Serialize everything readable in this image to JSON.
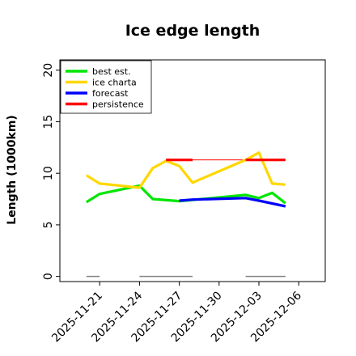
{
  "chart_data": {
    "type": "line",
    "title": "Ice edge length",
    "xlabel": "",
    "ylabel": "Length (1000km)",
    "ylim": [
      -0.5,
      21
    ],
    "yticks": [
      0,
      5,
      10,
      15,
      20
    ],
    "xlim": [
      "2025-11-18",
      "2025-12-08"
    ],
    "xticks": [
      "2025-11-21",
      "2025-11-24",
      "2025-11-27",
      "2025-11-30",
      "2025-12-03",
      "2025-12-06"
    ],
    "highlight_xtick": "2025-11-27",
    "legend_position": "top-left",
    "grid": false,
    "series": [
      {
        "name": "best est.",
        "color": "#00e600",
        "style": "thick",
        "x": [
          "2025-11-20",
          "2025-11-21",
          "2025-11-24",
          "2025-11-25",
          "2025-11-27",
          "2025-12-02",
          "2025-12-03",
          "2025-12-04",
          "2025-12-05"
        ],
        "y": [
          7.2,
          8.0,
          8.8,
          7.5,
          7.3,
          7.9,
          7.6,
          8.1,
          7.1
        ]
      },
      {
        "name": "best est. (connector)",
        "color": "#00e600",
        "style": "thin",
        "x": [
          "2025-11-27",
          "2025-12-02"
        ],
        "y": [
          7.3,
          7.9
        ]
      },
      {
        "name": "ice charta",
        "color": "#ffd700",
        "style": "thick",
        "x": [
          "2025-11-20",
          "2025-11-21",
          "2025-11-24",
          "2025-11-25",
          "2025-11-26",
          "2025-11-27",
          "2025-11-28",
          "2025-12-02",
          "2025-12-03",
          "2025-12-04",
          "2025-12-05"
        ],
        "y": [
          9.8,
          9.0,
          8.6,
          10.5,
          11.2,
          10.7,
          9.1,
          11.3,
          12.0,
          9.0,
          8.9
        ]
      },
      {
        "name": "ice charta (connector)",
        "color": "#ffd700",
        "style": "thin",
        "x": [
          "2025-11-28",
          "2025-12-02"
        ],
        "y": [
          9.1,
          11.3
        ]
      },
      {
        "name": "forecast",
        "color": "#0000ff",
        "style": "thick",
        "x": [
          "2025-11-27",
          "2025-11-28",
          "2025-12-02",
          "2025-12-03",
          "2025-12-05"
        ],
        "y": [
          7.35,
          7.45,
          7.6,
          7.35,
          6.8
        ]
      },
      {
        "name": "forecast (connector)",
        "color": "#0000ff",
        "style": "thin",
        "x": [
          "2025-11-28",
          "2025-12-02"
        ],
        "y": [
          7.45,
          7.6
        ]
      },
      {
        "name": "persistence",
        "color": "#ff0000",
        "style": "thick",
        "x": [
          "2025-11-26",
          "2025-11-28"
        ],
        "y": [
          11.3,
          11.3
        ]
      },
      {
        "name": "persistence (b)",
        "color": "#ff0000",
        "style": "thick",
        "x": [
          "2025-12-02",
          "2025-12-05"
        ],
        "y": [
          11.3,
          11.3
        ]
      },
      {
        "name": "persistence (connector)",
        "color": "#ff0000",
        "style": "thin",
        "x": [
          "2025-11-28",
          "2025-12-02"
        ],
        "y": [
          11.3,
          11.3
        ]
      }
    ],
    "baseline_segments": [
      {
        "color": "#808080",
        "x": [
          "2025-11-20",
          "2025-11-21"
        ],
        "y": [
          0,
          0
        ]
      },
      {
        "color": "#808080",
        "x": [
          "2025-11-24",
          "2025-11-28"
        ],
        "y": [
          0,
          0
        ]
      },
      {
        "color": "#808080",
        "x": [
          "2025-12-02",
          "2025-12-05"
        ],
        "y": [
          0,
          0
        ]
      }
    ],
    "legend": [
      {
        "label": "best est.",
        "color": "#00e600"
      },
      {
        "label": "ice charta",
        "color": "#ffd700"
      },
      {
        "label": "forecast",
        "color": "#0000ff"
      },
      {
        "label": "persistence",
        "color": "#ff0000"
      }
    ],
    "highlight_color": "#228b22"
  }
}
